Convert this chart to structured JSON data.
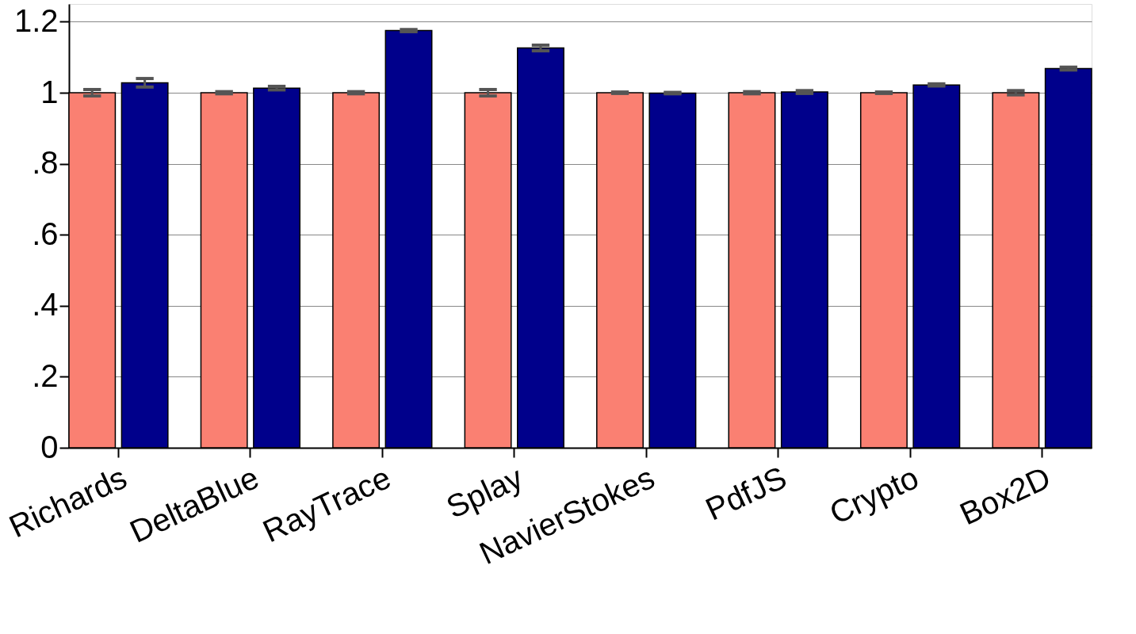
{
  "chart_data": {
    "type": "bar",
    "categories": [
      "Richards",
      "DeltaBlue",
      "RayTrace",
      "Splay",
      "NavierStokes",
      "PdfJS",
      "Crypto",
      "Box2D"
    ],
    "series": [
      {
        "color": "#fa8072",
        "values": [
          1.0,
          1.0,
          1.0,
          1.0,
          1.0,
          1.0,
          1.0,
          1.0
        ],
        "errors": [
          0.009,
          0.003,
          0.003,
          0.009,
          0.002,
          0.003,
          0.002,
          0.006
        ]
      },
      {
        "color": "#00008b",
        "values": [
          1.028,
          1.013,
          1.175,
          1.126,
          0.999,
          1.002,
          1.022,
          1.068
        ],
        "errors": [
          0.012,
          0.005,
          0.003,
          0.008,
          0.002,
          0.004,
          0.003,
          0.004
        ]
      }
    ],
    "ylim": [
      0,
      1.25
    ],
    "yticks": [
      0,
      {
        "value": 0.2,
        "label": ".2"
      },
      {
        "value": 0.4,
        "label": ".4"
      },
      {
        "value": 0.6,
        "label": ".6"
      },
      {
        "value": 0.8,
        "label": ".8"
      },
      1,
      1.2
    ],
    "grid": "y",
    "legend": false
  }
}
